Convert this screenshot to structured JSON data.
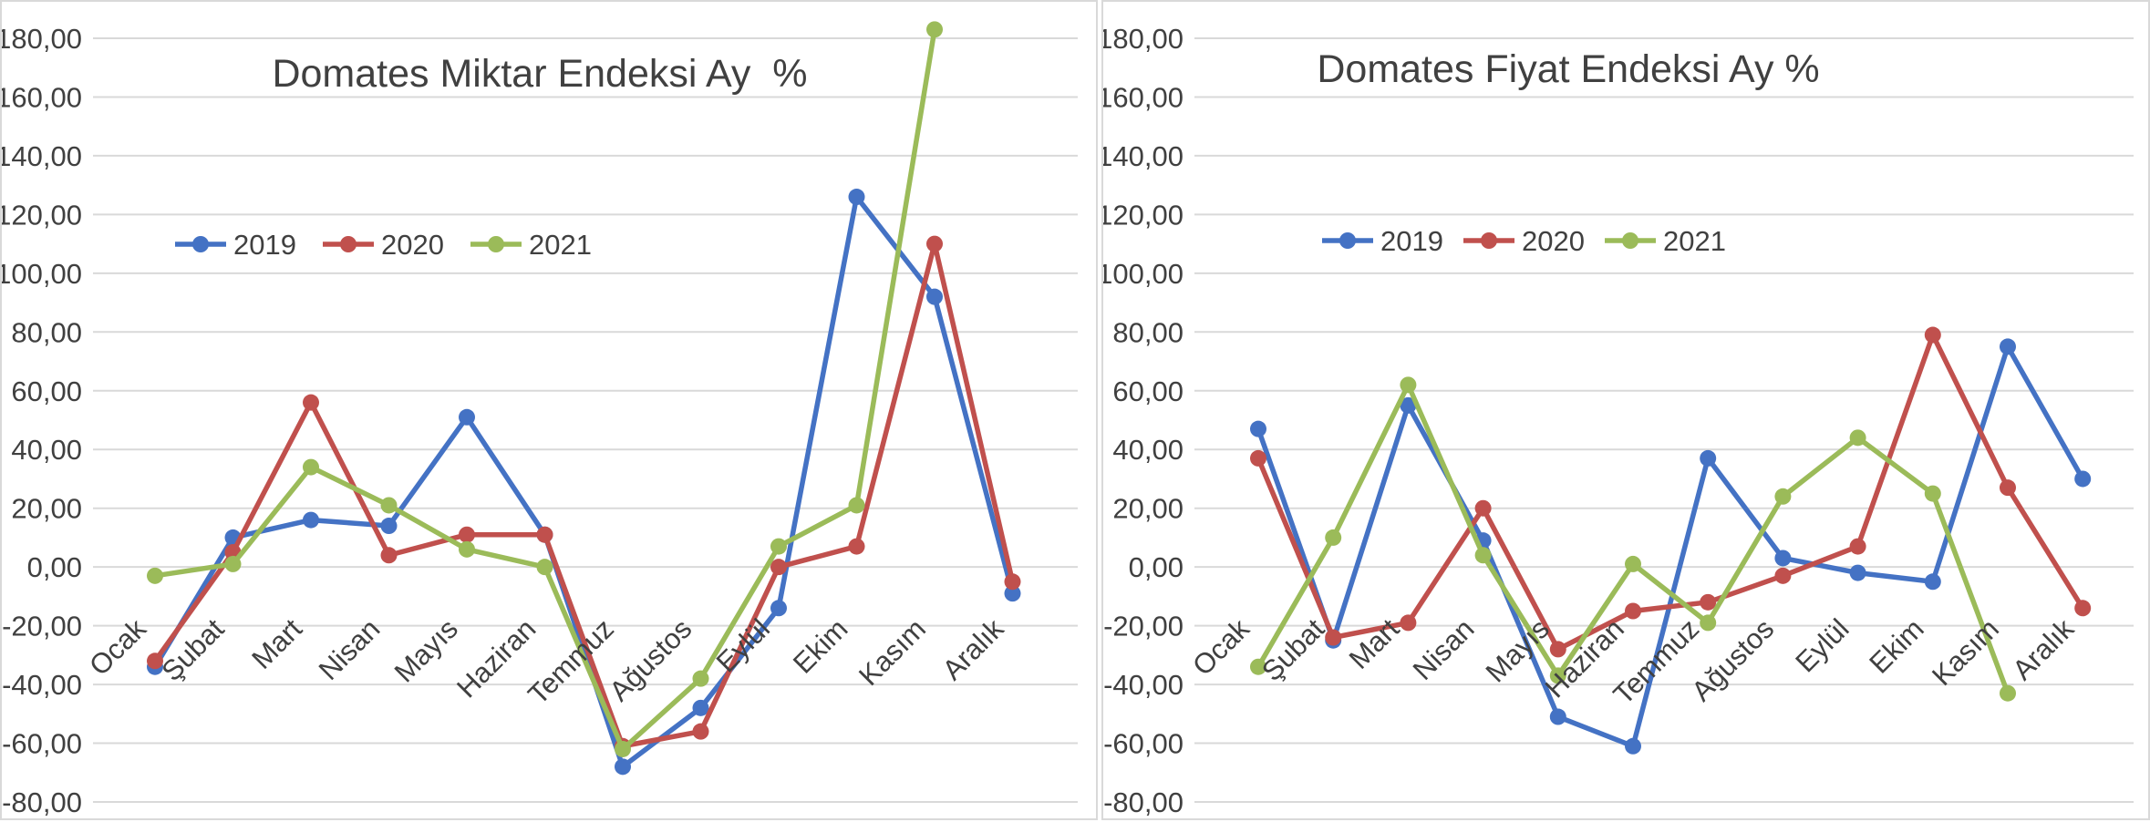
{
  "colors": {
    "2019": "#4472c4",
    "2020": "#c0504d",
    "2021": "#9bbb59",
    "grid": "#d9d9d9",
    "text": "#404040"
  },
  "chart_data": [
    {
      "type": "line",
      "title": "Domates Miktar Endeksi Ay  %",
      "xlabel": "",
      "ylabel": "",
      "categories": [
        "Ocak",
        "Şubat",
        "Mart",
        "Nisan",
        "Mayıs",
        "Haziran",
        "Temmuz",
        "Ağustos",
        "Eylül",
        "Ekim",
        "Kasım",
        "Aralık"
      ],
      "ylim": [
        -80,
        180
      ],
      "yticks": [
        "180,00",
        "160,00",
        "140,00",
        "120,00",
        "100,00",
        "80,00",
        "60,00",
        "40,00",
        "20,00",
        "0,00",
        "-20,00",
        "-40,00",
        "-60,00",
        "-80,00"
      ],
      "grid": true,
      "legend": "upper-left",
      "series": [
        {
          "name": "2019",
          "values": [
            -34,
            10,
            16,
            14,
            51,
            11,
            -68,
            -48,
            -14,
            126,
            92,
            -9
          ]
        },
        {
          "name": "2020",
          "values": [
            -32,
            5,
            56,
            4,
            11,
            11,
            -61,
            -56,
            0,
            7,
            110,
            -5
          ]
        },
        {
          "name": "2021",
          "values": [
            -3,
            1,
            34,
            21,
            6,
            0,
            -62,
            -38,
            7,
            21,
            183,
            null
          ]
        }
      ]
    },
    {
      "type": "line",
      "title": "Domates Fiyat Endeksi Ay %",
      "xlabel": "",
      "ylabel": "",
      "categories": [
        "Ocak",
        "Şubat",
        "Mart",
        "Nisan",
        "Mayıs",
        "Haziran",
        "Temmuz",
        "Ağustos",
        "Eylül",
        "Ekim",
        "Kasım",
        "Aralık"
      ],
      "ylim": [
        -80,
        180
      ],
      "yticks": [
        "180,00",
        "160,00",
        "140,00",
        "120,00",
        "100,00",
        "80,00",
        "60,00",
        "40,00",
        "20,00",
        "0,00",
        "-20,00",
        "-40,00",
        "-60,00",
        "-80,00"
      ],
      "grid": true,
      "legend": "upper-left",
      "series": [
        {
          "name": "2019",
          "values": [
            47,
            -25,
            55,
            9,
            -51,
            -61,
            37,
            3,
            -2,
            -5,
            75,
            30
          ]
        },
        {
          "name": "2020",
          "values": [
            37,
            -24,
            -19,
            20,
            -28,
            -15,
            -12,
            -3,
            7,
            79,
            27,
            -14
          ]
        },
        {
          "name": "2021",
          "values": [
            -34,
            10,
            62,
            4,
            -37,
            1,
            -19,
            24,
            44,
            25,
            -43,
            null
          ]
        }
      ]
    }
  ]
}
